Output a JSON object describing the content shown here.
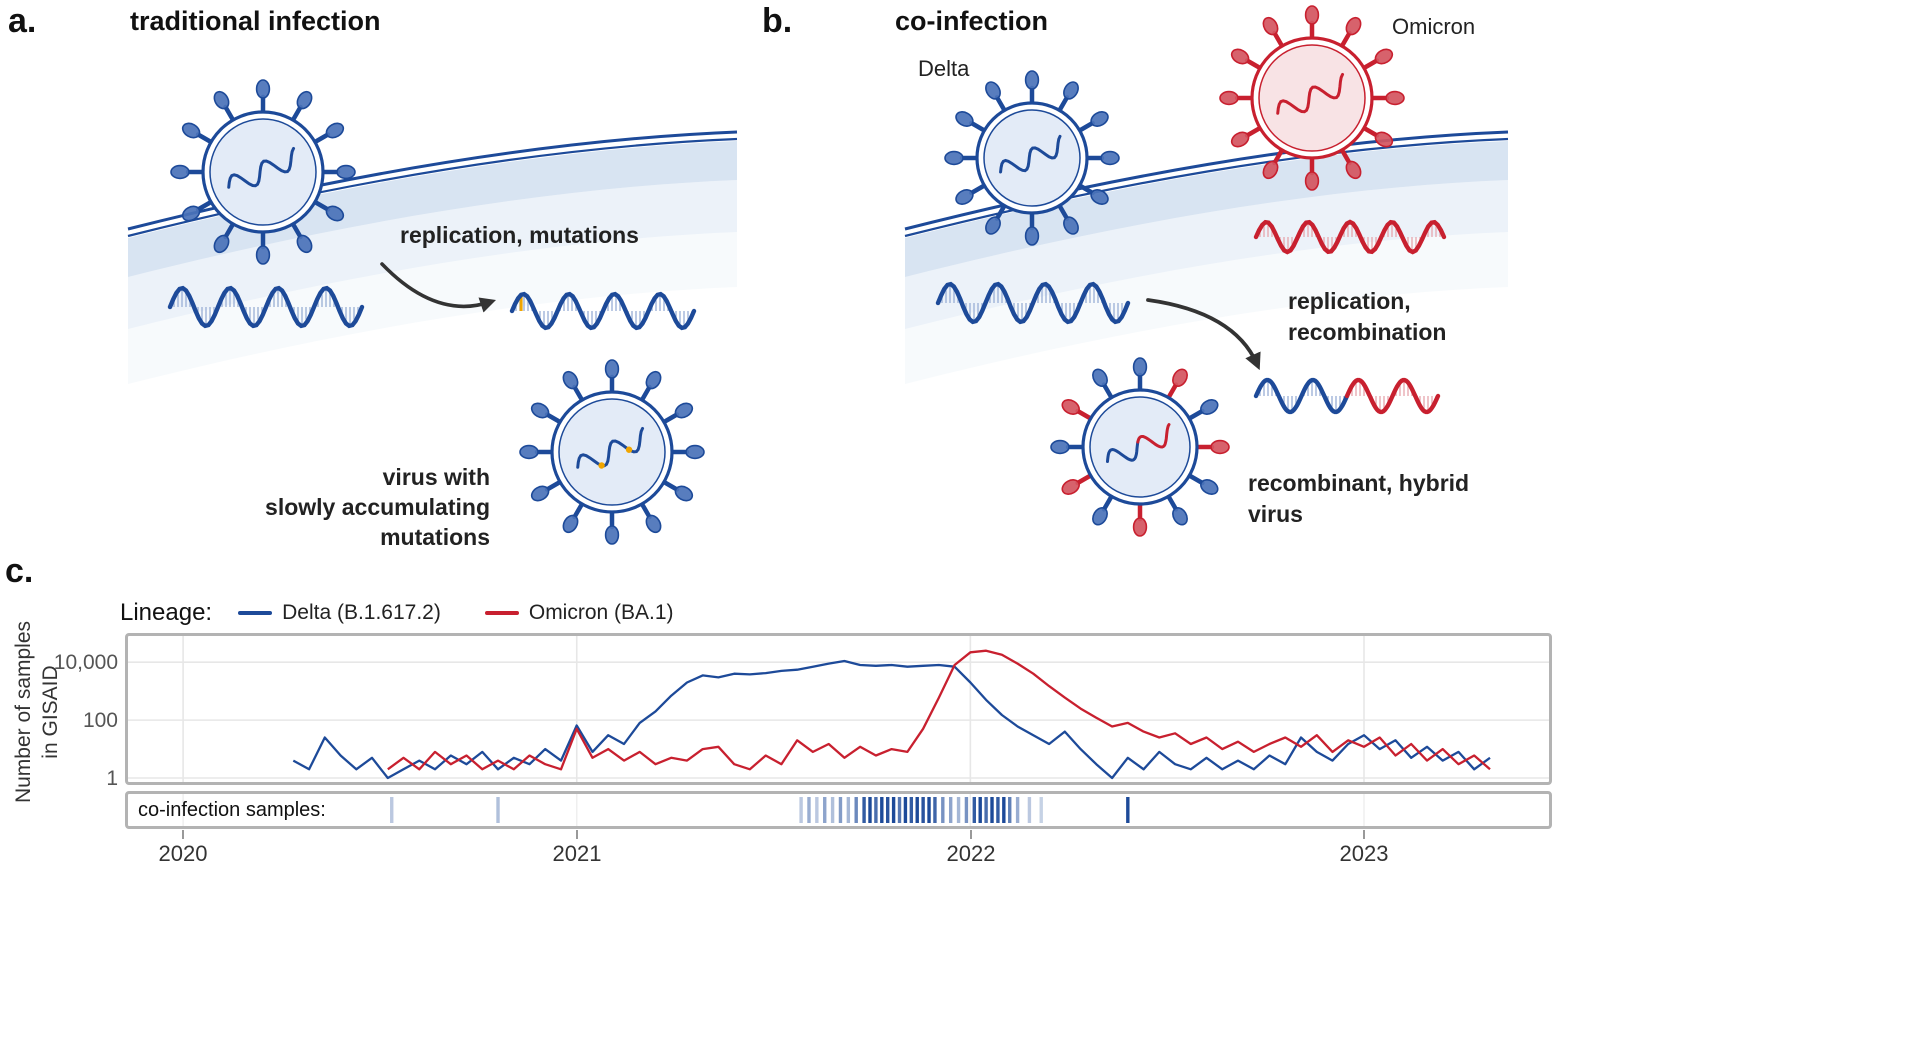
{
  "panel_a": {
    "label": "a.",
    "title": "traditional infection",
    "arrow_label": "replication, mutations",
    "result_line1": "virus with",
    "result_line2": "slowly accumulating mutations"
  },
  "panel_b": {
    "label": "b.",
    "title": "co-infection",
    "delta_label": "Delta",
    "omicron_label": "Omicron",
    "arrow_line1": "replication,",
    "arrow_line2": "recombination",
    "result_line1": "recombinant, hybrid",
    "result_line2": "virus"
  },
  "panel_c": {
    "label": "c.",
    "legend_title": "Lineage:",
    "legend": [
      {
        "label": "Delta (B.1.617.2)",
        "color": "#1d4a99"
      },
      {
        "label": "Omicron (BA.1)",
        "color": "#c8202f"
      }
    ],
    "y_label_line1": "Number of samples",
    "y_label_line2": "in GISAID",
    "y_ticks": [
      "10,000",
      "100",
      "1"
    ],
    "x_ticks": [
      "2020",
      "2021",
      "2022",
      "2023"
    ],
    "strip_label": "co-infection samples:"
  },
  "colors": {
    "blue": "#1d4a99",
    "red": "#c8202f",
    "blue_mid": "#4a72b8",
    "red_mid": "#d45560",
    "blue_pale": "#d9e4f4",
    "red_pale": "#f6d9dc",
    "blue_tick": "#9fb4d8",
    "red_tick": "#e8abb2",
    "mutation": "#f0a500",
    "membrane_fill": "#a9c4e2",
    "frame_gray": "#b3b3b3",
    "arrow": "#333333",
    "grid": "#e7e7e7"
  },
  "chart_data": {
    "type": "line",
    "title": "",
    "xlabel": "",
    "ylabel": "Number of samples in GISAID",
    "y_scale": "log",
    "ylim": [
      1,
      50000
    ],
    "xlim": [
      2019.86,
      2023.47
    ],
    "x_ticks": [
      2020,
      2021,
      2022,
      2023
    ],
    "y_tick_values": [
      1,
      100,
      10000
    ],
    "grid": true,
    "legend_position": "top-left",
    "series": [
      {
        "name": "Delta (B.1.617.2)",
        "key": "delta-line",
        "color": "#1d4a99",
        "x_start": 2020.28,
        "x_step": 0.04,
        "values": [
          4,
          2,
          25,
          6,
          2,
          5,
          1,
          2,
          4,
          2,
          6,
          3,
          8,
          2,
          5,
          3,
          10,
          4,
          65,
          8,
          30,
          15,
          80,
          200,
          700,
          2000,
          3500,
          3000,
          4000,
          3800,
          4200,
          5000,
          5500,
          7000,
          9000,
          11000,
          8000,
          7500,
          8000,
          7000,
          7500,
          8000,
          7000,
          2000,
          500,
          150,
          60,
          30,
          15,
          40,
          10,
          3,
          1,
          5,
          2,
          8,
          3,
          2,
          5,
          2,
          4,
          2,
          6,
          3,
          25,
          8,
          4,
          15,
          30,
          10,
          20,
          5,
          12,
          4,
          8,
          2,
          5
        ]
      },
      {
        "name": "Omicron (BA.1)",
        "key": "omicron-line",
        "color": "#c8202f",
        "x_start": 2020.52,
        "x_step": 0.04,
        "values": [
          2,
          5,
          2,
          8,
          3,
          6,
          2,
          4,
          2,
          6,
          3,
          2,
          50,
          5,
          10,
          4,
          8,
          3,
          5,
          4,
          10,
          12,
          3,
          2,
          6,
          3,
          20,
          8,
          15,
          5,
          12,
          6,
          10,
          8,
          50,
          600,
          8000,
          22000,
          25000,
          18000,
          9000,
          4000,
          1500,
          600,
          250,
          120,
          60,
          80,
          40,
          25,
          35,
          15,
          25,
          10,
          18,
          8,
          15,
          25,
          12,
          30,
          8,
          20,
          12,
          25,
          6,
          15,
          4,
          10,
          3,
          6,
          2
        ]
      }
    ],
    "coinfection_ticks": [
      {
        "x": 2020.53,
        "opacity": 0.3
      },
      {
        "x": 2020.8,
        "opacity": 0.35
      },
      {
        "x": 2021.57,
        "opacity": 0.3
      },
      {
        "x": 2021.59,
        "opacity": 0.45
      },
      {
        "x": 2021.61,
        "opacity": 0.3
      },
      {
        "x": 2021.63,
        "opacity": 0.5
      },
      {
        "x": 2021.65,
        "opacity": 0.35
      },
      {
        "x": 2021.67,
        "opacity": 0.55
      },
      {
        "x": 2021.69,
        "opacity": 0.4
      },
      {
        "x": 2021.71,
        "opacity": 0.65
      },
      {
        "x": 2021.73,
        "opacity": 0.9
      },
      {
        "x": 2021.745,
        "opacity": 1
      },
      {
        "x": 2021.76,
        "opacity": 0.8
      },
      {
        "x": 2021.775,
        "opacity": 1
      },
      {
        "x": 2021.79,
        "opacity": 0.95
      },
      {
        "x": 2021.805,
        "opacity": 1
      },
      {
        "x": 2021.82,
        "opacity": 0.75
      },
      {
        "x": 2021.835,
        "opacity": 1
      },
      {
        "x": 2021.85,
        "opacity": 0.9
      },
      {
        "x": 2021.865,
        "opacity": 1
      },
      {
        "x": 2021.88,
        "opacity": 0.95
      },
      {
        "x": 2021.895,
        "opacity": 1
      },
      {
        "x": 2021.91,
        "opacity": 0.85
      },
      {
        "x": 2021.93,
        "opacity": 0.6
      },
      {
        "x": 2021.95,
        "opacity": 0.5
      },
      {
        "x": 2021.97,
        "opacity": 0.4
      },
      {
        "x": 2021.99,
        "opacity": 0.6
      },
      {
        "x": 2022.01,
        "opacity": 0.9
      },
      {
        "x": 2022.025,
        "opacity": 1
      },
      {
        "x": 2022.04,
        "opacity": 0.8
      },
      {
        "x": 2022.055,
        "opacity": 1
      },
      {
        "x": 2022.07,
        "opacity": 0.9
      },
      {
        "x": 2022.085,
        "opacity": 1
      },
      {
        "x": 2022.1,
        "opacity": 0.7
      },
      {
        "x": 2022.12,
        "opacity": 0.45
      },
      {
        "x": 2022.15,
        "opacity": 0.3
      },
      {
        "x": 2022.18,
        "opacity": 0.25
      },
      {
        "x": 2022.4,
        "opacity": 1
      }
    ]
  }
}
